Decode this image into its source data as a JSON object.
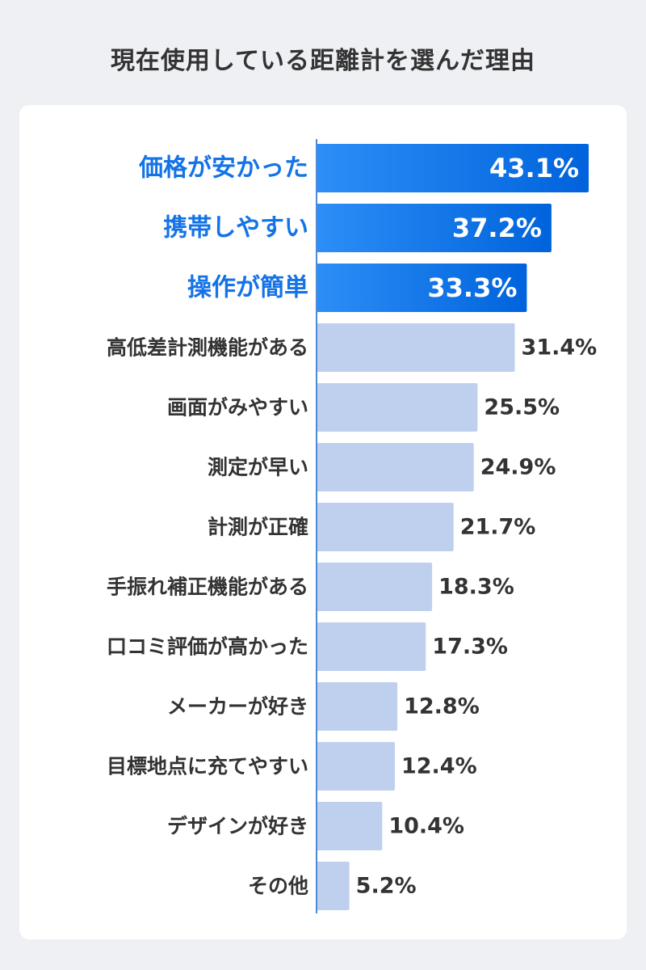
{
  "title": "現在使用している距離計を選んだ理由",
  "colors": {
    "highlight_start": "#2c8ef6",
    "highlight_end": "#0063dc",
    "highlight_text": "#1473e6",
    "normal_bar": "#bfd0ee",
    "normal_text": "#333333",
    "axis": "#4f8ad6"
  },
  "chart_data": {
    "type": "bar",
    "orientation": "horizontal",
    "categories": [
      "価格が安かった",
      "携帯しやすい",
      "操作が簡単",
      "高低差計測機能がある",
      "画面がみやすい",
      "測定が早い",
      "計測が正確",
      "手振れ補正機能がある",
      "口コミ評価が高かった",
      "メーカーが好き",
      "目標地点に充てやすい",
      "デザインが好き",
      "その他"
    ],
    "values": [
      43.1,
      37.2,
      33.3,
      31.4,
      25.5,
      24.9,
      21.7,
      18.3,
      17.3,
      12.8,
      12.4,
      10.4,
      5.2
    ],
    "value_labels": [
      "43.1%",
      "37.2%",
      "33.3%",
      "31.4%",
      "25.5%",
      "24.9%",
      "21.7%",
      "18.3%",
      "17.3%",
      "12.8%",
      "12.4%",
      "10.4%",
      "5.2%"
    ],
    "highlighted_top": 3,
    "unit": "%",
    "xlim": [
      0,
      45
    ]
  }
}
